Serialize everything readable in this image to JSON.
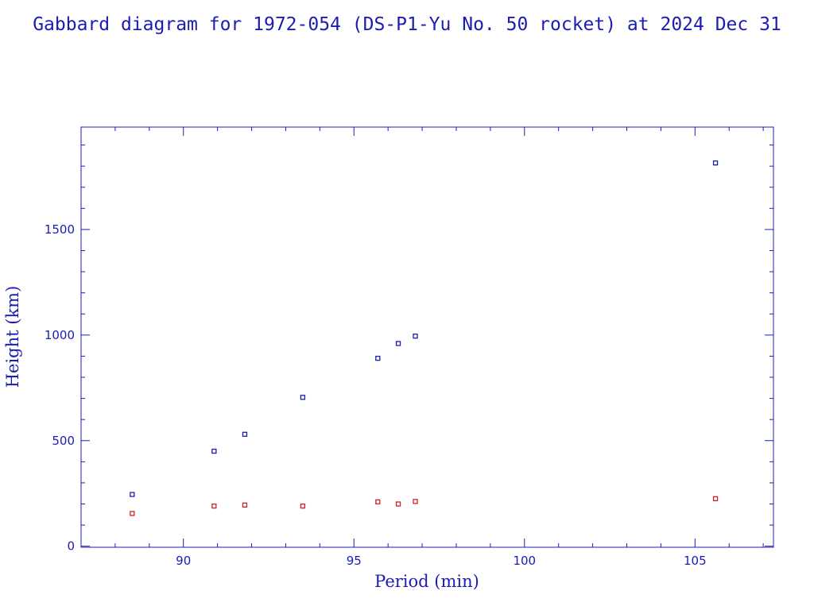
{
  "colors": {
    "foreground": "#1c1cb4",
    "apogee_series": "#1c1cb4",
    "perigee_series": "#d42020",
    "background": "#ffffff"
  },
  "chart_data": {
    "type": "scatter",
    "title": "Gabbard diagram for 1972-054 (DS-P1-Yu No. 50 rocket) at 2024 Dec 31",
    "xlabel": "Period (min)",
    "ylabel": "Height (km)",
    "xlim": [
      87,
      107.3
    ],
    "ylim": [
      -5,
      1985
    ],
    "x_ticks": [
      90,
      95,
      100,
      105
    ],
    "x_tick_labels": [
      "90",
      "95",
      "100",
      "105"
    ],
    "y_ticks": [
      0,
      500,
      1000,
      1500
    ],
    "y_tick_labels": [
      "0",
      "500",
      "1000",
      "1500"
    ],
    "x_minor_step": 1,
    "y_minor_step": 100,
    "grid": false,
    "legend": "none",
    "marker": "open-square",
    "series": [
      {
        "color": "#1c1cb4",
        "x": [
          88.5,
          90.9,
          91.8,
          93.5,
          95.7,
          96.3,
          96.8,
          105.6
        ],
        "y": [
          245,
          450,
          530,
          705,
          890,
          960,
          995,
          1815
        ]
      },
      {
        "color": "#d42020",
        "x": [
          88.5,
          90.9,
          91.8,
          93.5,
          95.7,
          96.3,
          96.8,
          105.6
        ],
        "y": [
          155,
          190,
          195,
          190,
          210,
          200,
          212,
          225
        ]
      }
    ]
  }
}
